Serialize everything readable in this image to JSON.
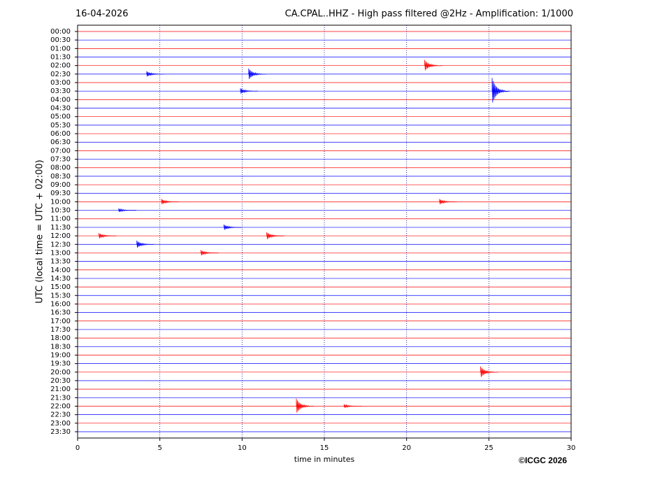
{
  "chart_data": {
    "type": "helicorder",
    "title_left": "16-04-2026",
    "title": "CA.CPAL..HHZ - High pass filtered @2Hz - Amplification: 1/1000",
    "ylabel": "UTC (local time = UTC + 02:00)",
    "xlabel": "time in minutes",
    "copyright": "©ICGC 2026",
    "categories": [
      "00:00",
      "00:30",
      "01:00",
      "01:30",
      "02:00",
      "02:30",
      "03:00",
      "03:30",
      "04:00",
      "04:30",
      "05:00",
      "05:30",
      "06:00",
      "06:30",
      "07:00",
      "07:30",
      "08:00",
      "08:30",
      "09:00",
      "09:30",
      "10:00",
      "10:30",
      "11:00",
      "11:30",
      "12:00",
      "12:30",
      "13:00",
      "13:30",
      "14:00",
      "14:30",
      "15:00",
      "15:30",
      "16:00",
      "16:30",
      "17:00",
      "17:30",
      "18:00",
      "18:30",
      "19:00",
      "19:30",
      "20:00",
      "20:30",
      "21:00",
      "21:30",
      "22:00",
      "22:30",
      "23:00",
      "23:30"
    ],
    "colors": [
      "#ff0000",
      "#0000ff"
    ],
    "xlim": [
      0,
      30
    ],
    "xticks": [
      0,
      5,
      10,
      15,
      20,
      25,
      30
    ],
    "grid": true,
    "events": [
      {
        "row": "02:00",
        "minute": 21.1,
        "amplitude": 0.3
      },
      {
        "row": "02:30",
        "minute": 10.4,
        "amplitude": 0.3
      },
      {
        "row": "02:30",
        "minute": 4.2,
        "amplitude": 0.15
      },
      {
        "row": "03:30",
        "minute": 25.2,
        "amplitude": 0.7
      },
      {
        "row": "03:30",
        "minute": 9.9,
        "amplitude": 0.15
      },
      {
        "row": "10:00",
        "minute": 5.1,
        "amplitude": 0.15
      },
      {
        "row": "10:00",
        "minute": 22,
        "amplitude": 0.15
      },
      {
        "row": "10:30",
        "minute": 2.5,
        "amplitude": 0.1
      },
      {
        "row": "11:30",
        "minute": 8.9,
        "amplitude": 0.15
      },
      {
        "row": "12:00",
        "minute": 1.3,
        "amplitude": 0.15
      },
      {
        "row": "12:00",
        "minute": 11.5,
        "amplitude": 0.2
      },
      {
        "row": "12:30",
        "minute": 3.6,
        "amplitude": 0.2
      },
      {
        "row": "13:00",
        "minute": 7.5,
        "amplitude": 0.15
      },
      {
        "row": "20:00",
        "minute": 24.5,
        "amplitude": 0.3
      },
      {
        "row": "22:00",
        "minute": 13.3,
        "amplitude": 0.4
      },
      {
        "row": "22:00",
        "minute": 16.2,
        "amplitude": 0.1
      }
    ]
  }
}
